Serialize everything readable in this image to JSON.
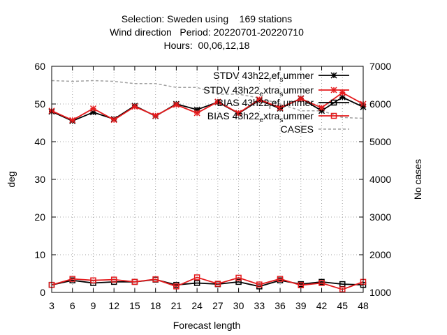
{
  "chart_data": {
    "type": "line",
    "title_lines": [
      "Selection: Sweden using    169 stations",
      "Wind direction   Period: 20220701-20220710",
      "Hours:  00,06,12,18"
    ],
    "xlabel": "Forecast length",
    "ylabel": "deg",
    "y2label": "No cases",
    "x": [
      3,
      6,
      9,
      12,
      15,
      18,
      21,
      24,
      27,
      30,
      33,
      36,
      39,
      42,
      45,
      48
    ],
    "xlim": [
      3,
      48
    ],
    "ylim": [
      0,
      60
    ],
    "y2lim": [
      1000,
      7000
    ],
    "yticks": [
      0,
      10,
      20,
      30,
      40,
      50,
      60
    ],
    "y2ticks": [
      1000,
      2000,
      3000,
      4000,
      5000,
      6000,
      7000
    ],
    "grid": true,
    "legend_position": "top-right",
    "legend": [
      {
        "base": "STDV 43h22",
        "sub": "r",
        "mid": "ef",
        "sub2": "s",
        "tail": "ummer"
      },
      {
        "base": "STDV 43h22",
        "sub": "e",
        "mid": "xtra",
        "sub2": "s",
        "tail": "ummer"
      },
      {
        "base": "BIAS 43h22",
        "sub": "r",
        "mid": "ef",
        "sub2": "s",
        "tail": "ummer"
      },
      {
        "base": "BIAS 43h22",
        "sub": "e",
        "mid": "xtra",
        "sub2": "s",
        "tail": "ummer"
      },
      {
        "base": "CASES",
        "sub": "",
        "mid": "",
        "sub2": "",
        "tail": ""
      }
    ],
    "series": [
      {
        "color": "#000000",
        "marker": "star",
        "axis": "y",
        "values": [
          48.0,
          45.5,
          47.8,
          46.0,
          49.5,
          46.8,
          50.0,
          48.5,
          50.5,
          47.5,
          51.0,
          48.8,
          51.5,
          48.2,
          51.8,
          49.2
        ]
      },
      {
        "color": "#e41a1c",
        "marker": "star",
        "axis": "y",
        "values": [
          48.2,
          45.7,
          48.8,
          45.8,
          49.3,
          46.9,
          49.8,
          47.6,
          50.6,
          47.6,
          51.2,
          49.0,
          51.4,
          49.0,
          53.0,
          50.0
        ]
      },
      {
        "color": "#000000",
        "marker": "square",
        "axis": "y",
        "values": [
          2.0,
          3.2,
          2.5,
          2.8,
          2.8,
          3.4,
          2.0,
          2.5,
          2.2,
          2.8,
          1.6,
          3.2,
          2.2,
          2.8,
          2.2,
          2.0
        ]
      },
      {
        "color": "#e41a1c",
        "marker": "square",
        "axis": "y",
        "values": [
          2.0,
          3.6,
          3.2,
          3.4,
          2.8,
          3.5,
          1.6,
          4.0,
          2.3,
          3.9,
          2.1,
          3.6,
          1.9,
          2.5,
          0.8,
          2.8
        ]
      },
      {
        "color": "#a0a0a0",
        "marker": "none",
        "axis": "y2",
        "dash": true,
        "values": [
          6620,
          6600,
          6620,
          6600,
          6540,
          6540,
          6440,
          6440,
          6260,
          6260,
          6160,
          6000,
          5820,
          5820,
          5640,
          5620
        ]
      }
    ]
  }
}
